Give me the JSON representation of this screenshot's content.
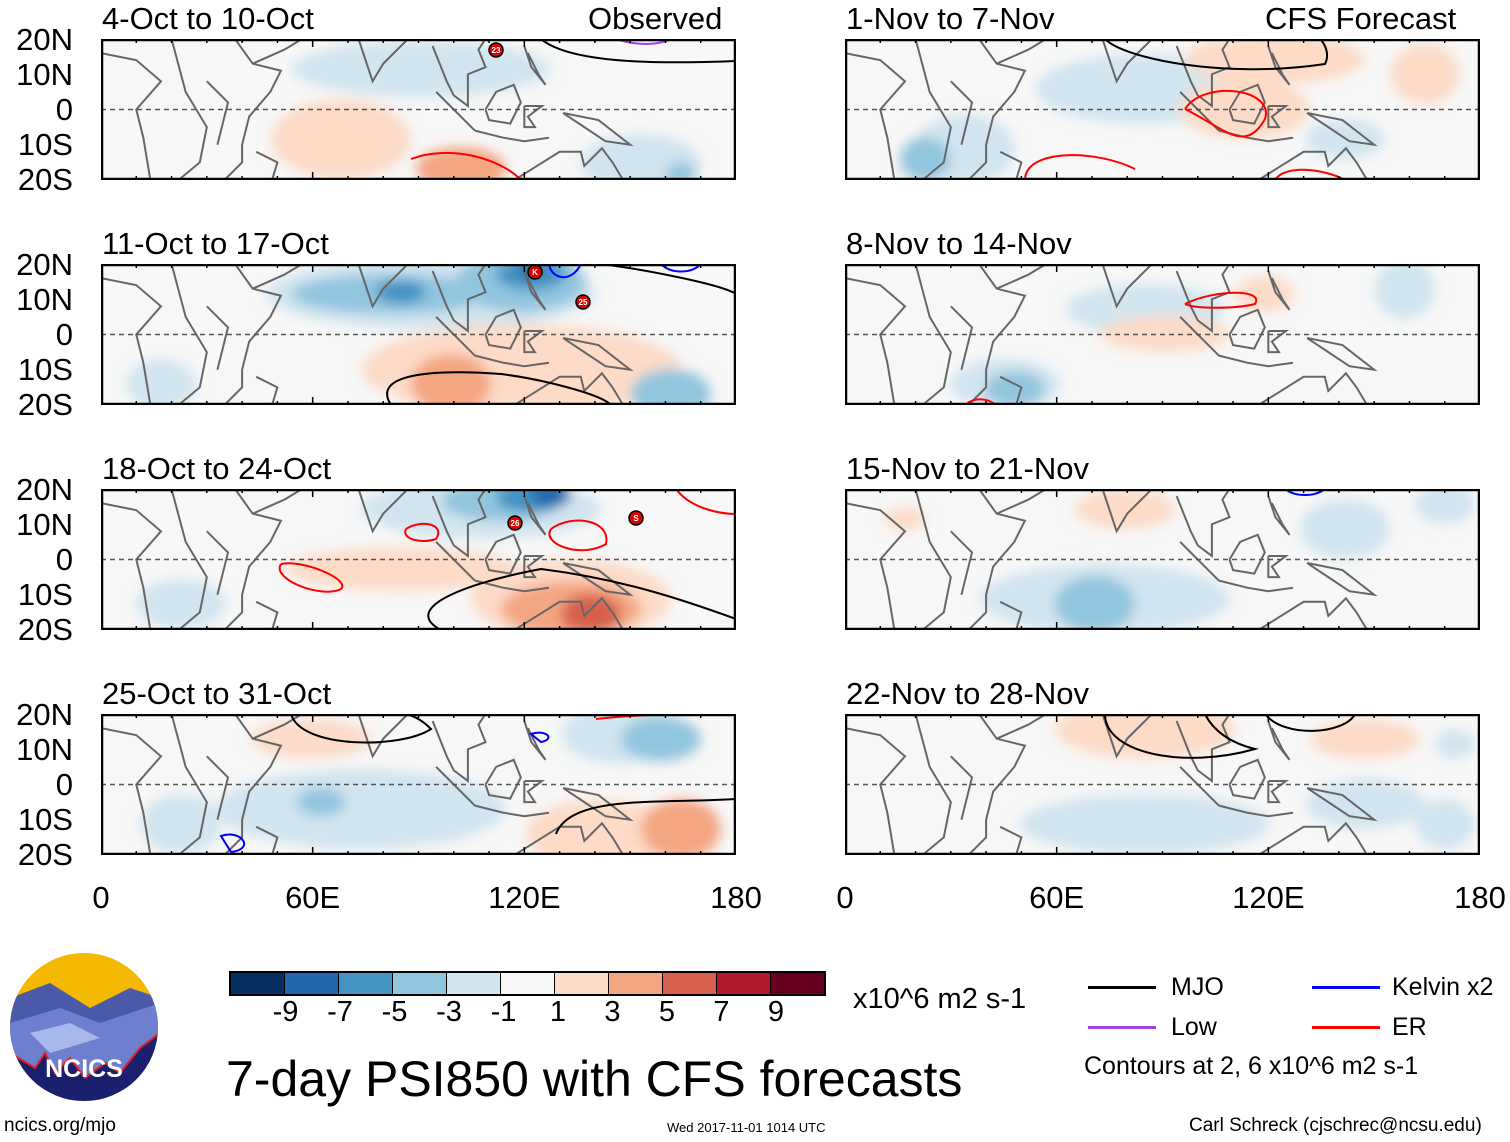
{
  "header": {
    "left_label": "Observed",
    "right_label": "CFS Forecast"
  },
  "panels": [
    {
      "title": "4-Oct to 10-Oct",
      "storms": [
        "23"
      ]
    },
    {
      "title": "11-Oct to 17-Oct",
      "storms": [
        "K",
        "25"
      ]
    },
    {
      "title": "18-Oct to 24-Oct",
      "storms": [
        "26",
        "S"
      ]
    },
    {
      "title": "25-Oct to 31-Oct",
      "storms": []
    },
    {
      "title": "1-Nov to 7-Nov",
      "storms": []
    },
    {
      "title": "8-Nov to 14-Nov",
      "storms": []
    },
    {
      "title": "15-Nov to 21-Nov",
      "storms": []
    },
    {
      "title": "22-Nov to 28-Nov",
      "storms": []
    }
  ],
  "lat_labels": [
    "20N",
    "10N",
    "0",
    "10S",
    "20S"
  ],
  "lon_labels": [
    "0",
    "60E",
    "120E",
    "180"
  ],
  "colorbar": {
    "colors": [
      "#053061",
      "#2166ac",
      "#4393c3",
      "#92c5de",
      "#d1e5f0",
      "#f7f7f7",
      "#fddbc7",
      "#f4a582",
      "#d6604d",
      "#b2182b",
      "#67001f"
    ],
    "labels": [
      "-9",
      "-7",
      "-5",
      "-3",
      "-1",
      "1",
      "3",
      "5",
      "7",
      "9"
    ],
    "units": "x10^6 m2 s-1"
  },
  "title": "7-day PSI850 with CFS forecasts",
  "legend": {
    "items": [
      {
        "label": "MJO",
        "color": "#000000"
      },
      {
        "label": "Kelvin x2",
        "color": "#0000ff"
      },
      {
        "label": "Low",
        "color": "#a040e0"
      },
      {
        "label": "ER",
        "color": "#ff0000"
      }
    ],
    "note": "Contours at 2, 6 x10^6 m2 s-1"
  },
  "logo": {
    "text": "NCICS"
  },
  "footer": {
    "url": "ncics.org/mjo",
    "timestamp": "Wed 2017-11-01 1014 UTC",
    "author": "Carl Schreck (cjschrec@ncsu.edu)"
  }
}
